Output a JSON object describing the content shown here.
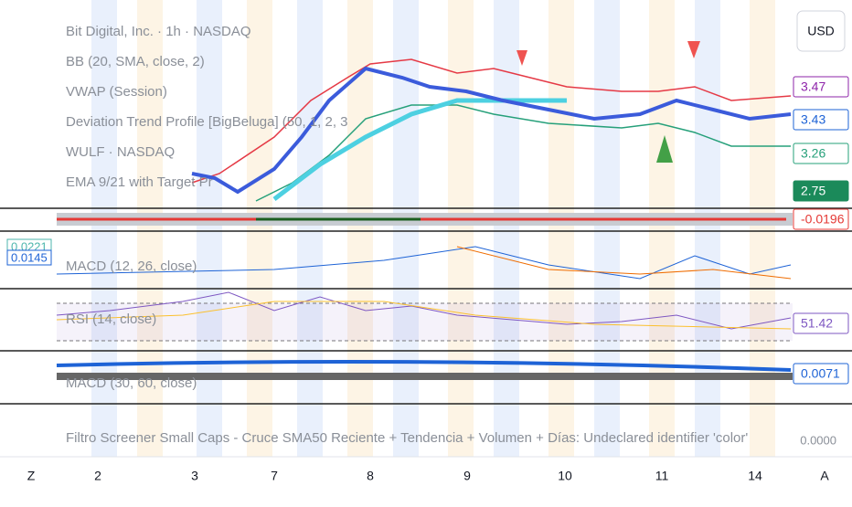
{
  "header": {
    "symbol": "Bit Digital, Inc. · 1h · NASDAQ",
    "indicators": [
      "BB (20, SMA, close, 2)",
      "VWAP (Session)",
      "Deviation Trend Profile [BigBeluga] (50, 1, 2, 3",
      "WULF · NASDAQ",
      "EMA 9/21 with Target Pr"
    ]
  },
  "currency": "USD",
  "price_labels": [
    {
      "text": "3.47",
      "color": "#8e24aa",
      "filled": false
    },
    {
      "text": "3.43",
      "color": "#1e63d6",
      "filled": false
    },
    {
      "text": "3.26",
      "color": "#26a07a",
      "filled": false
    },
    {
      "text": "2.75",
      "color": "#1b8a5a",
      "filled": true
    },
    {
      "text": "-0.0196",
      "color": "#e53935",
      "filled": false
    },
    {
      "text": "51.42",
      "color": "#7e57c2",
      "filled": false
    },
    {
      "text": "0.0071",
      "color": "#1e63d6",
      "filled": false
    }
  ],
  "left_labels": [
    {
      "text": "0.0221",
      "color": "#4db6ac"
    },
    {
      "text": "0.0145",
      "color": "#1e63d6"
    }
  ],
  "panes": {
    "macd_fast": "MACD (12, 26, close)",
    "rsi": "RSI (14, close)",
    "macd_slow": "MACD (30, 60, close)"
  },
  "footer": {
    "error": "Filtro Screener Small Caps - Cruce SMA50 Reciente + Tendencia + Volumen + Días: Undeclared identifier 'color'",
    "value": "0.0000"
  },
  "x_axis": [
    "Z",
    "2",
    "3",
    "7",
    "8",
    "9",
    "10",
    "11",
    "14",
    "A"
  ]
}
